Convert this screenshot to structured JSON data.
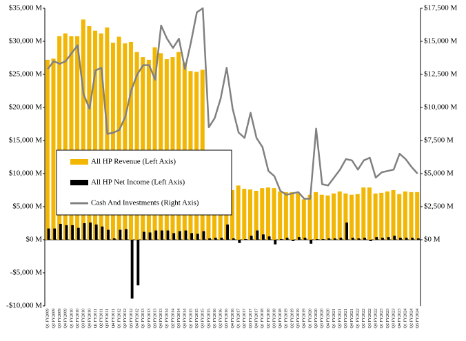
{
  "chart_data": {
    "type": "bar_line",
    "categories": [
      "Q1 FY2009",
      "Q2 FY2009",
      "Q3 FY2009",
      "Q4 FY2009",
      "Q1 FY2010",
      "Q2 FY2010",
      "Q3 FY2010",
      "Q4 FY2010",
      "Q1 FY2011",
      "Q2 FY2011",
      "Q3 FY2011",
      "Q4 FY2011",
      "Q1 FY2012",
      "Q2 FY2012",
      "Q3 FY2012",
      "Q4 FY2012",
      "Q1 FY2013",
      "Q2 FY2013",
      "Q3 FY2013",
      "Q4 FY2013",
      "Q1 FY2014",
      "Q2 FY2014",
      "Q3 FY2014",
      "Q4 FY2014",
      "Q1 FY2015",
      "Q2 FY2015",
      "Q3 FY2015",
      "Q4 FY2015",
      "Q1 FY2016",
      "Q2 FY2016",
      "Q3 FY2016",
      "Q4 FY2016",
      "Q1 FY2017",
      "Q2 FY2017",
      "Q3 FY2017",
      "Q4 FY2017",
      "Q1 FY2018",
      "Q2 FY2018",
      "Q3 FY2018",
      "Q4 FY2018",
      "Q1 FY2019",
      "Q2 FY2019",
      "Q3 FY2019",
      "Q4 FY2019",
      "Q1 FY2020",
      "Q2 FY2020",
      "Q3 FY2020",
      "Q4 FY2020",
      "Q1 FY2021",
      "Q2 FY2021",
      "Q3 FY2021",
      "Q4 FY2021",
      "Q1 FY2022",
      "Q2 FY2022",
      "Q3 FY2022",
      "Q4 FY2022",
      "Q1 FY2023",
      "Q2 FY2023",
      "Q3 FY2023",
      "Q4 FY2023",
      "Q1 FY2024",
      "Q2 FY2024",
      "Q3 FY2024"
    ],
    "series": [
      {
        "name": "All HP Revenue (Left Axis)",
        "color": "#f2b705",
        "kind": "bar",
        "values": [
          27200,
          27400,
          30800,
          31200,
          30800,
          30800,
          33300,
          32300,
          31600,
          31200,
          32100,
          29800,
          30700,
          29700,
          29900,
          28400,
          27600,
          27200,
          29100,
          28200,
          27300,
          27600,
          28400,
          26800,
          25500,
          25400,
          25700,
          13000,
          12500,
          12000,
          11400,
          7500,
          8200,
          7700,
          7600,
          7400,
          7800,
          7900,
          7800,
          7300,
          7200,
          7200,
          7000,
          6100,
          6800,
          7200,
          6800,
          6700,
          7000,
          7300,
          7000,
          6800,
          6900,
          7900,
          7900,
          7000,
          7100,
          7300,
          7500,
          6900,
          7300,
          7200,
          7200
        ]
      },
      {
        "name": "All HP Net Income (Left Axis)",
        "color": "#000000",
        "kind": "bar",
        "values": [
          1700,
          1700,
          2400,
          2200,
          2200,
          1800,
          2500,
          2600,
          2300,
          2000,
          1500,
          200,
          1500,
          1600,
          -8900,
          -6900,
          1200,
          1100,
          1400,
          1400,
          1400,
          1000,
          1300,
          1400,
          1000,
          900,
          1300,
          200,
          300,
          300,
          2300,
          200,
          -500,
          100,
          600,
          1400,
          800,
          500,
          -700,
          100,
          300,
          -200,
          400,
          300,
          -600,
          100,
          100,
          200,
          200,
          300,
          2600,
          300,
          200,
          300,
          -200,
          400,
          300,
          400,
          600,
          300,
          300,
          300,
          200
        ]
      },
      {
        "name": "Cash And Investments (Right Axis)",
        "color": "#808080",
        "kind": "line",
        "axis": "y2",
        "values": [
          12900,
          13500,
          13300,
          13500,
          14100,
          14700,
          11000,
          9900,
          12800,
          13000,
          8000,
          8100,
          8300,
          9300,
          11300,
          12500,
          13200,
          13200,
          12100,
          16200,
          15200,
          14500,
          15200,
          12900,
          14900,
          17200,
          17500,
          8500,
          9200,
          10700,
          13000,
          9900,
          8100,
          7700,
          9600,
          7700,
          7000,
          5200,
          4800,
          3700,
          3400,
          3500,
          3600,
          3100,
          3100,
          8400,
          4200,
          4100,
          4700,
          5300,
          6100,
          6000,
          5300,
          6000,
          6200,
          4700,
          5100,
          5200,
          5300,
          6500,
          6100,
          5500,
          5000
        ]
      }
    ],
    "ylim": [
      -10000,
      35000
    ],
    "yticks": [
      {
        "value": -10000,
        "label": "-$10,000 M"
      },
      {
        "value": -5000,
        "label": "-$5,000 M"
      },
      {
        "value": 0,
        "label": "$0 M"
      },
      {
        "value": 5000,
        "label": "$5,000 M"
      },
      {
        "value": 10000,
        "label": "$10,000 M"
      },
      {
        "value": 15000,
        "label": "$15,000 M"
      },
      {
        "value": 20000,
        "label": "$20,000 M"
      },
      {
        "value": 25000,
        "label": "$25,000 M"
      },
      {
        "value": 30000,
        "label": "$30,000 M"
      },
      {
        "value": 35000,
        "label": "$35,000 M"
      }
    ],
    "y2lim": [
      -5000,
      17500
    ],
    "y2ticks": [
      {
        "value": 0,
        "label": "$0 M"
      },
      {
        "value": 2500,
        "label": "$2,500 M"
      },
      {
        "value": 5000,
        "label": "$5,000 M"
      },
      {
        "value": 7500,
        "label": "$7,500 M"
      },
      {
        "value": 10000,
        "label": "$10,000 M"
      },
      {
        "value": 12500,
        "label": "$12,500 M"
      },
      {
        "value": 15000,
        "label": "$15,000 M"
      },
      {
        "value": 17500,
        "label": "$17,500 M"
      }
    ]
  }
}
